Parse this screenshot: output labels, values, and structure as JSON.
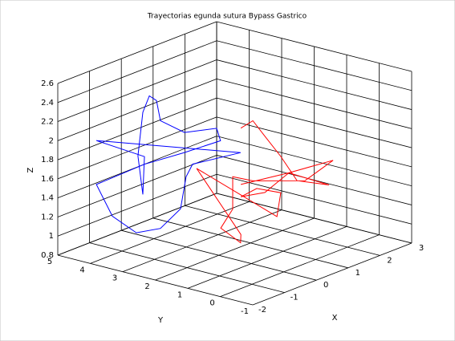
{
  "chart_data": {
    "type": "line3d",
    "title": "Trayectorias egunda sutura Bypass  Gastrico",
    "xlabel": "X",
    "ylabel": "Y",
    "zlabel": "Z",
    "xlim": [
      -2,
      3
    ],
    "ylim": [
      -1,
      5
    ],
    "zlim": [
      0.8,
      2.6
    ],
    "xticks": [
      -2,
      -1,
      0,
      1,
      2,
      3
    ],
    "yticks": [
      -1,
      0,
      1,
      2,
      3,
      4,
      5
    ],
    "zticks": [
      0.8,
      1,
      1.2,
      1.4,
      1.6,
      1.8,
      2,
      2.2,
      2.4,
      2.6
    ],
    "grid": true,
    "series": [
      {
        "color": "#0000ff",
        "x": [
          -1,
          -1,
          -1,
          -1,
          -1,
          -1,
          -1,
          -1,
          -1,
          -1,
          -1,
          -1,
          -1,
          -1,
          -1,
          -1,
          -1,
          -1,
          -1,
          -1,
          -1,
          -1
        ],
        "y": [
          3.36,
          3.51,
          3.36,
          3.16,
          2.94,
          2.82,
          2.08,
          1.09,
          0.97,
          2.08,
          3.31,
          4.79,
          4.3,
          3.56,
          2.82,
          2.2,
          2.03,
          1.83,
          0.35,
          4.79,
          3.31,
          3.36
        ],
        "z": [
          1.45,
          1.84,
          2.31,
          2.5,
          2.47,
          2.27,
          2.21,
          2.34,
          2.22,
          2.0,
          1.77,
          1.43,
          1.14,
          1.03,
          1.14,
          1.4,
          1.75,
          1.9,
          2.15,
          1.89,
          1.85,
          1.45
        ]
      },
      {
        "color": "#ff0000",
        "x": [
          1.5,
          1.5,
          1.5,
          1.5,
          1.5,
          1.5,
          1.5,
          1.5,
          1.5,
          1.5,
          1.5,
          1.5,
          1.5,
          0.5,
          0,
          0,
          1.5,
          1.5,
          1.5,
          1.5,
          1.5,
          1.5,
          1.5
        ],
        "y": [
          2.79,
          2.42,
          2.05,
          1.56,
          1.06,
          0.08,
          1.31,
          2.05,
          2.79,
          2.3,
          1.56,
          1.68,
          4.15,
          1.81,
          1.33,
          1.94,
          3.04,
          3.04,
          2.42,
          0.82,
          -0.05,
          1.31,
          2.79
        ],
        "z": [
          1.87,
          1.98,
          1.85,
          1.68,
          1.47,
          1.51,
          1.53,
          1.26,
          1.15,
          1.28,
          1.3,
          1.04,
          1.33,
          0.97,
          0.99,
          1.09,
          1.0,
          1.34,
          1.35,
          1.49,
          1.78,
          1.53,
          1.28
        ]
      }
    ]
  }
}
